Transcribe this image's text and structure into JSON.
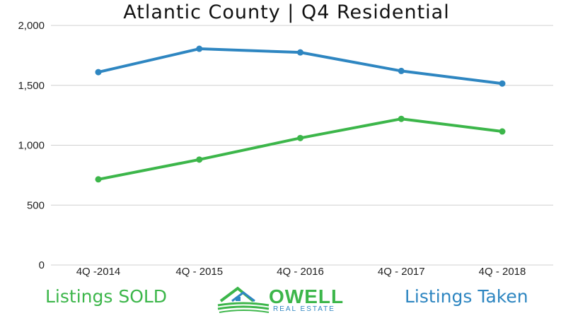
{
  "chart_data": {
    "type": "line",
    "title": "Atlantic County | Q4 Residential",
    "categories": [
      "4Q -2014",
      "4Q - 2015",
      "4Q - 2016",
      "4Q - 2017",
      "4Q - 2018"
    ],
    "series": [
      {
        "name": "Listings Taken",
        "color": "#2e86c1",
        "values": [
          1610,
          1805,
          1775,
          1620,
          1515
        ]
      },
      {
        "name": "Listings SOLD",
        "color": "#3cb64a",
        "values": [
          715,
          880,
          1060,
          1220,
          1115
        ]
      }
    ],
    "ylim": [
      0,
      2000
    ],
    "yticks": [
      0,
      500,
      1000,
      1500,
      2000
    ],
    "ytick_labels": [
      "0",
      "500",
      "1,000",
      "1,500",
      "2,000"
    ],
    "grid": true,
    "xlabel": "",
    "ylabel": ""
  },
  "legend": {
    "sold_label": "Listings SOLD",
    "sold_color": "#3cb64a",
    "taken_label": "Listings Taken",
    "taken_color": "#2e86c1"
  },
  "logo": {
    "name": "OWELL",
    "tagline": "REAL ESTATE",
    "icon": "house-icon",
    "green": "#3cb64a",
    "blue": "#2e86c1"
  }
}
